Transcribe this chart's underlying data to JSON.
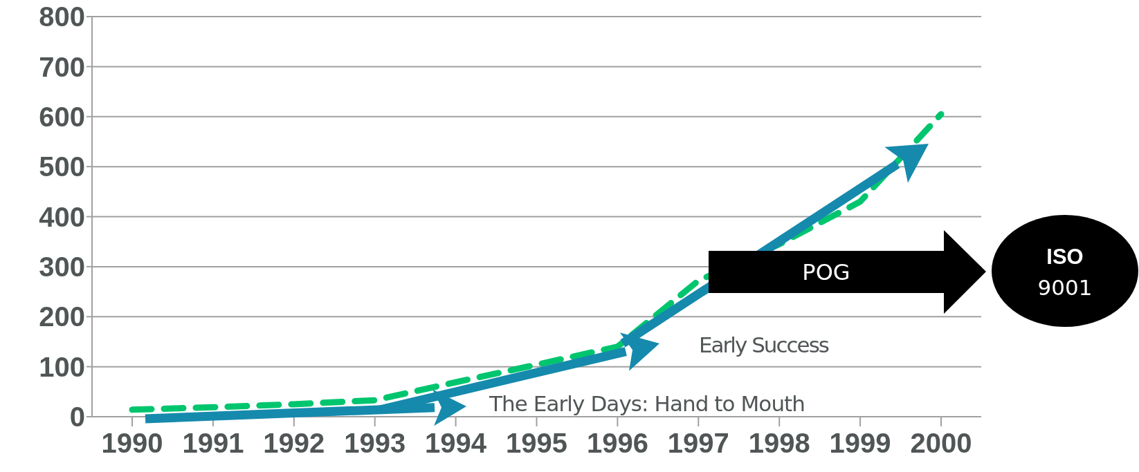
{
  "chart_data": {
    "type": "line",
    "categories": [
      "1990",
      "1991",
      "1992",
      "1993",
      "1994",
      "1995",
      "1996",
      "1997",
      "1998",
      "1999",
      "2000"
    ],
    "series": [
      {
        "color": "#00c56f",
        "values": [
          14,
          19,
          25,
          33,
          69,
          104,
          140,
          272,
          345,
          430,
          605
        ]
      }
    ],
    "ylim": [
      0,
      800
    ],
    "yticks": [
      0,
      100,
      200,
      300,
      400,
      500,
      600,
      700,
      800
    ],
    "grid": "y",
    "legend": false,
    "marker": "none",
    "line_style": "dashed",
    "annotations": [
      "The Early Days: Hand to Mouth",
      "Early Success",
      "POG",
      "ISO",
      "9001"
    ]
  }
}
